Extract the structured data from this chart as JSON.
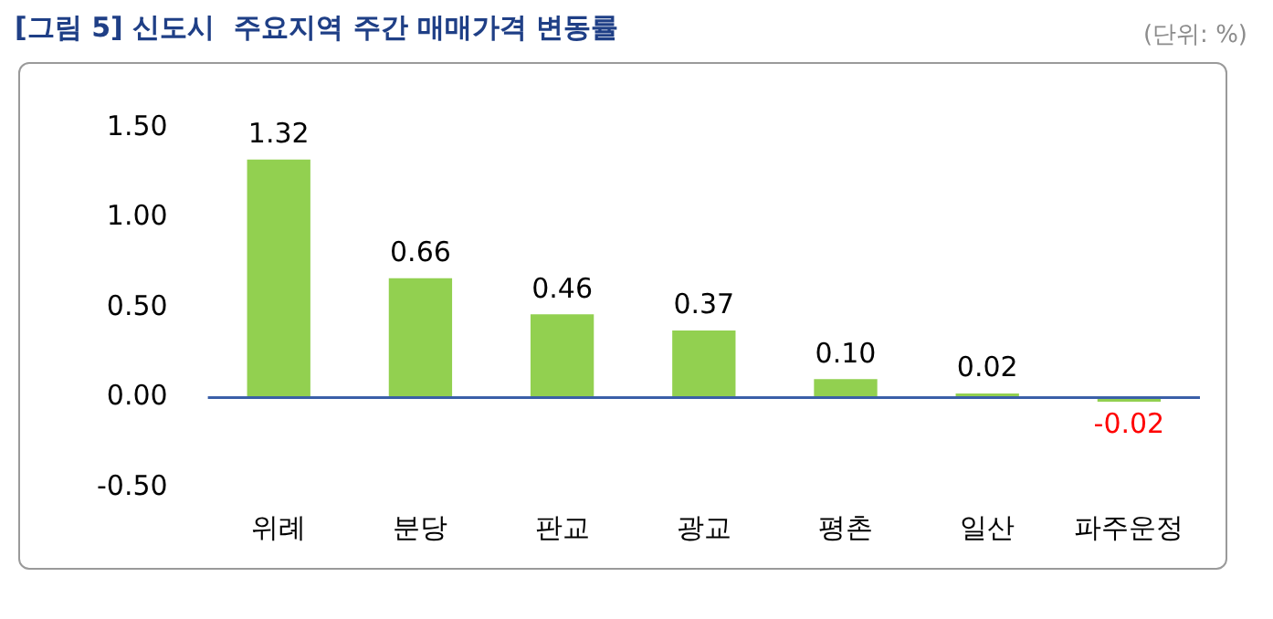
{
  "chart_data": {
    "type": "bar",
    "title": "[그림 5] 신도시  주요지역 주간 매매가격 변동률",
    "annotations": [
      "(단위: %)"
    ],
    "categories": [
      "위례",
      "분당",
      "판교",
      "광교",
      "평촌",
      "일산",
      "파주운정"
    ],
    "values": [
      1.32,
      0.66,
      0.46,
      0.37,
      0.1,
      0.02,
      -0.02
    ],
    "value_labels": [
      "1.32",
      "0.66",
      "0.46",
      "0.37",
      "0.10",
      "0.02",
      "-0.02"
    ],
    "color": "#92d050",
    "ylim": [
      -0.5,
      1.5
    ],
    "yticks": [
      {
        "value": -0.5,
        "label": "-0.50"
      },
      {
        "value": 0,
        "label": "0.00"
      },
      {
        "value": 0.5,
        "label": "0.50"
      },
      {
        "value": 1,
        "label": "1.00"
      },
      {
        "value": 1.5,
        "label": "1.50"
      }
    ],
    "ref_lines": [
      {
        "axis": "y",
        "value": 0,
        "color": "#3a5fa8"
      }
    ],
    "grid": false,
    "legend": false
  }
}
